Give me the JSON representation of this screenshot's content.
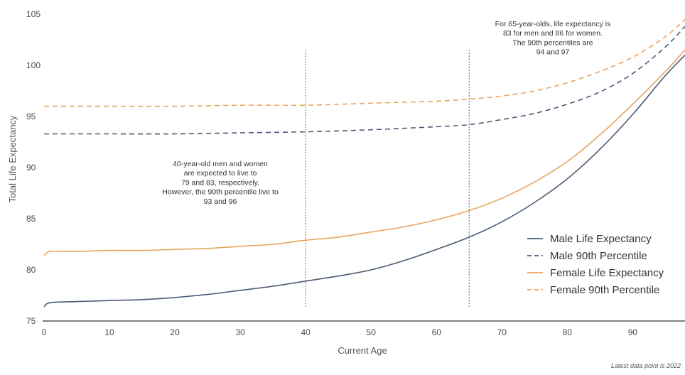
{
  "chart_data": {
    "type": "line",
    "xlabel": "Current Age",
    "ylabel": "Total Life Expectancy",
    "xlim": [
      0,
      98
    ],
    "ylim": [
      75,
      105
    ],
    "xticks": [
      0,
      10,
      20,
      30,
      40,
      50,
      60,
      70,
      80,
      90
    ],
    "yticks": [
      75,
      80,
      85,
      90,
      95,
      100,
      105
    ],
    "grid": false,
    "legend_position": "bottom-right",
    "series": [
      {
        "name": "Male Life Expectancy",
        "color": "#4a5a74",
        "dash": "solid",
        "x": [
          0,
          1,
          5,
          10,
          15,
          20,
          25,
          30,
          35,
          40,
          45,
          50,
          55,
          60,
          65,
          70,
          75,
          80,
          85,
          90,
          95,
          98
        ],
        "y": [
          76.4,
          76.8,
          76.9,
          77.0,
          77.1,
          77.3,
          77.6,
          78.0,
          78.4,
          78.9,
          79.4,
          80.0,
          80.9,
          82.0,
          83.2,
          84.7,
          86.6,
          88.9,
          91.8,
          95.2,
          99.0,
          101.0
        ]
      },
      {
        "name": "Male 90th Percentile",
        "color": "#4a5a74",
        "dash": "dashed",
        "x": [
          0,
          10,
          20,
          30,
          40,
          50,
          60,
          65,
          70,
          75,
          80,
          85,
          90,
          95,
          98
        ],
        "y": [
          93.3,
          93.3,
          93.3,
          93.4,
          93.5,
          93.7,
          94.0,
          94.2,
          94.7,
          95.3,
          96.2,
          97.4,
          99.2,
          101.8,
          103.8
        ]
      },
      {
        "name": "Female Life Expectancy",
        "color": "#e8a45e",
        "dash": "solid",
        "x": [
          0,
          1,
          5,
          10,
          15,
          20,
          25,
          30,
          35,
          40,
          45,
          50,
          55,
          60,
          65,
          70,
          75,
          80,
          85,
          90,
          95,
          98
        ],
        "y": [
          81.4,
          81.8,
          81.8,
          81.9,
          81.9,
          82.0,
          82.1,
          82.3,
          82.5,
          82.9,
          83.2,
          83.7,
          84.2,
          84.9,
          85.8,
          87.0,
          88.6,
          90.6,
          93.2,
          96.2,
          99.4,
          101.5
        ]
      },
      {
        "name": "Female 90th Percentile",
        "color": "#e8a45e",
        "dash": "dashed",
        "x": [
          0,
          10,
          20,
          30,
          40,
          50,
          60,
          65,
          70,
          75,
          80,
          85,
          90,
          95,
          98
        ],
        "y": [
          96.0,
          96.0,
          96.0,
          96.1,
          96.1,
          96.3,
          96.5,
          96.7,
          97.0,
          97.5,
          98.3,
          99.4,
          100.8,
          102.8,
          104.5
        ]
      }
    ],
    "reference_lines": [
      {
        "x": 40,
        "style": "dotted"
      },
      {
        "x": 65,
        "style": "dotted"
      }
    ],
    "annotations": [
      {
        "id": "age40",
        "lines": [
          "40-year-old men and women",
          "are expected to live to",
          "79 and 83, respectively.",
          "However, the 90th percentile live to",
          "93 and 96"
        ]
      },
      {
        "id": "age65",
        "lines": [
          "For 65-year-olds, life expectancy is",
          "83 for men and 86 for women.",
          "The 90th percentiles are",
          "94 and 97"
        ]
      }
    ],
    "footnote": "Latest data point is 2022"
  }
}
